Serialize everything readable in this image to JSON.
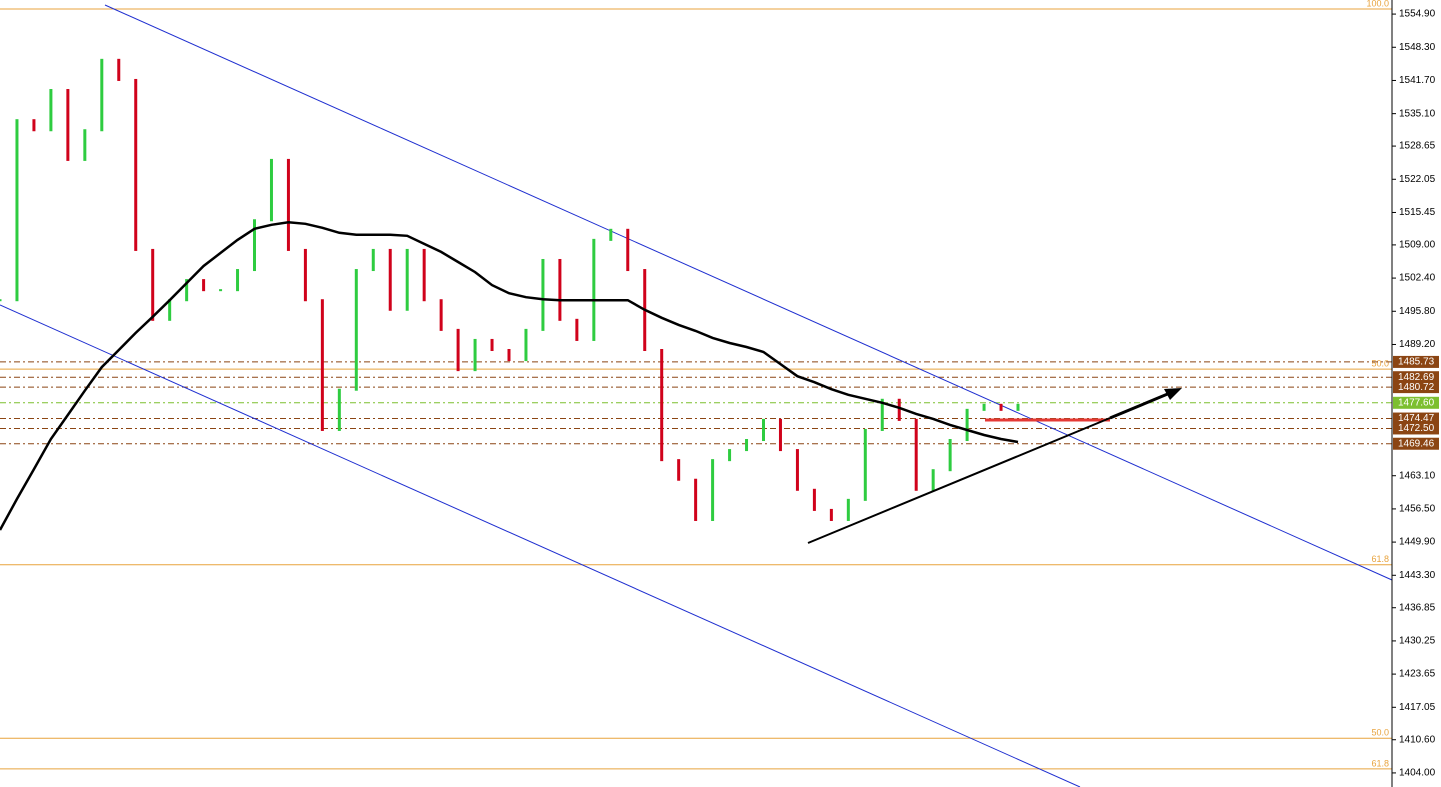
{
  "chart_data": {
    "type": "price",
    "series": [
      {
        "name": null,
        "up_color": "#2ecc40",
        "down_color": "#d0021b",
        "values": [
          1498.0,
          1533.8,
          1531.8,
          1539.8,
          1525.9,
          1531.8,
          1545.8,
          1541.8,
          1508.0,
          1494.1,
          1498.0,
          1502.0,
          1500.0,
          1500.0,
          1504.0,
          1513.9,
          1525.9,
          1508.0,
          1498.0,
          1472.2,
          1480.2,
          1504.0,
          1508.0,
          1496.1,
          1508.0,
          1498.0,
          1492.1,
          1484.1,
          1490.1,
          1488.1,
          1486.1,
          1492.1,
          1506.0,
          1494.1,
          1490.1,
          1510.0,
          1512.0,
          1504.0,
          1488.1,
          1466.2,
          1462.3,
          1454.3,
          1466.2,
          1468.2,
          1470.2,
          1474.2,
          1468.2,
          1460.3,
          1456.3,
          1454.3,
          1458.3,
          1472.2,
          1478.2,
          1474.2,
          1460.3,
          1464.2,
          1470.2,
          1476.2,
          1477.2,
          1476.2,
          1477.2
        ]
      },
      {
        "name": null,
        "color": "#000000",
        "values": [
          1452.3,
          1458.5,
          1464.4,
          1470.4,
          1475.2,
          1480.0,
          1484.7,
          1488.1,
          1491.5,
          1494.7,
          1498.0,
          1501.4,
          1504.8,
          1507.4,
          1510.0,
          1512.2,
          1513.0,
          1513.5,
          1513.2,
          1512.4,
          1511.4,
          1511.0,
          1511.0,
          1511.0,
          1510.8,
          1509.2,
          1507.6,
          1505.6,
          1503.6,
          1501.0,
          1499.4,
          1498.6,
          1498.2,
          1498.0,
          1498.0,
          1498.0,
          1498.0,
          1498.0,
          1496.1,
          1494.5,
          1493.1,
          1491.9,
          1490.5,
          1489.5,
          1488.7,
          1487.7,
          1485.3,
          1482.9,
          1481.7,
          1480.3,
          1479.2,
          1478.4,
          1477.6,
          1476.6,
          1475.4,
          1474.4,
          1473.2,
          1472.2,
          1471.2,
          1470.4,
          1469.8
        ]
      }
    ],
    "ylim": [
      1401.2,
      1557.7
    ],
    "yticks": [
      {
        "value": 1554.9,
        "label": "1554.90"
      },
      {
        "value": 1548.3,
        "label": "1548.30"
      },
      {
        "value": 1541.7,
        "label": "1541.70"
      },
      {
        "value": 1535.1,
        "label": "1535.10"
      },
      1528.65,
      1522.05,
      1515.45,
      {
        "value": 1509,
        "label": "1509.00"
      },
      {
        "value": 1502.4,
        "label": "1502.40"
      },
      {
        "value": 1495.8,
        "label": "1495.80"
      },
      {
        "value": 1489.2,
        "label": "1489.20"
      },
      {
        "value": 1463.1,
        "label": "1463.10"
      },
      {
        "value": 1456.5,
        "label": "1456.50"
      },
      {
        "value": 1449.9,
        "label": "1449.90"
      },
      {
        "value": 1443.3,
        "label": "1443.30"
      },
      1436.85,
      1430.25,
      1423.65,
      1417.05,
      {
        "value": 1410.6,
        "label": "1410.60"
      },
      {
        "value": 1404,
        "label": "1404.00"
      }
    ],
    "fib_color": "#e8a33d",
    "fib_levels": [
      {
        "value": 1555.9,
        "label": "100.0"
      },
      {
        "value": 1484.3,
        "label": "50.0"
      },
      {
        "value": 1445.4,
        "label": "61.8"
      },
      {
        "value": 1410.9,
        "label": "50.0"
      },
      {
        "value": 1404.8,
        "label": "61.8"
      }
    ],
    "level_color": "#8b4513",
    "current_color": "#7cbf2f",
    "price_levels": [
      1485.73,
      1482.69,
      1480.72,
      {
        "value": 1477.6,
        "label": "1477.60"
      },
      1474.47,
      {
        "value": 1472.5,
        "label": "1472.50"
      },
      1469.46
    ],
    "current_index": 3
  }
}
